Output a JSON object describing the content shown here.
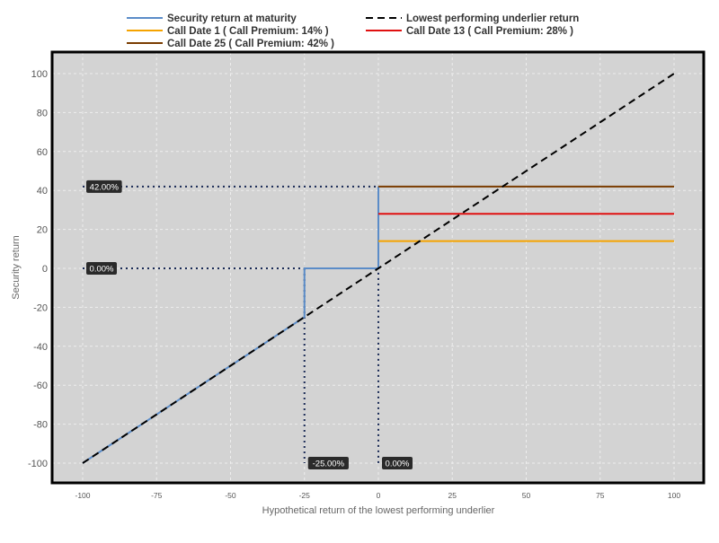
{
  "chart_data": {
    "type": "line",
    "xlabel": "Hypothetical return of the lowest performing underlier",
    "ylabel": "Security return",
    "xlim": [
      -100,
      100
    ],
    "ylim": [
      -110,
      110
    ],
    "x_ticks": [
      -100,
      -75,
      -50,
      -25,
      0,
      25,
      50,
      75,
      100
    ],
    "y_ticks": [
      -100,
      -80,
      -60,
      -40,
      -20,
      0,
      20,
      40,
      60,
      80,
      100
    ],
    "grid": true,
    "legend_position": "top",
    "series": [
      {
        "name": "Security return at maturity",
        "color": "#5b8cc8",
        "style": "solid",
        "points": [
          [
            -100,
            -100
          ],
          [
            -25,
            -25
          ],
          [
            -25,
            0
          ],
          [
            0,
            0
          ],
          [
            0,
            42
          ]
        ]
      },
      {
        "name": "Lowest performing underlier return",
        "color": "#000000",
        "style": "dashed",
        "points": [
          [
            -100,
            -100
          ],
          [
            100,
            100
          ]
        ]
      },
      {
        "name": "Call Date 1 ( Call Premium: 14% )",
        "color": "#f5a300",
        "style": "solid",
        "points": [
          [
            0,
            14
          ],
          [
            100,
            14
          ]
        ]
      },
      {
        "name": "Call Date 13 ( Call Premium: 28% )",
        "color": "#e01010",
        "style": "solid",
        "points": [
          [
            0,
            28
          ],
          [
            100,
            28
          ]
        ]
      },
      {
        "name": "Call Date 25 ( Call Premium: 42% )",
        "color": "#7a3c00",
        "style": "solid",
        "points": [
          [
            0,
            42
          ],
          [
            100,
            42
          ]
        ]
      }
    ],
    "reference_lines": [
      {
        "points": [
          [
            -100,
            42
          ],
          [
            0,
            42
          ]
        ]
      },
      {
        "points": [
          [
            -100,
            0
          ],
          [
            -25,
            0
          ]
        ]
      },
      {
        "points": [
          [
            -25,
            0
          ],
          [
            -25,
            -100
          ]
        ]
      },
      {
        "points": [
          [
            0,
            42
          ],
          [
            0,
            -100
          ]
        ]
      }
    ],
    "annotations": [
      {
        "text": "42.00%",
        "x": -100,
        "y": 42
      },
      {
        "text": "0.00%",
        "x": -100,
        "y": 0
      },
      {
        "text": "-25.00%",
        "x": -25,
        "y": -100
      },
      {
        "text": "0.00%",
        "x": 0,
        "y": -100
      }
    ]
  },
  "colors": {
    "plot_background": "#d3d3d3",
    "grid": "#eeeeee",
    "frame": "#000000",
    "reference": "#1a2a55",
    "annotation_bg": "#2a2a2a"
  }
}
